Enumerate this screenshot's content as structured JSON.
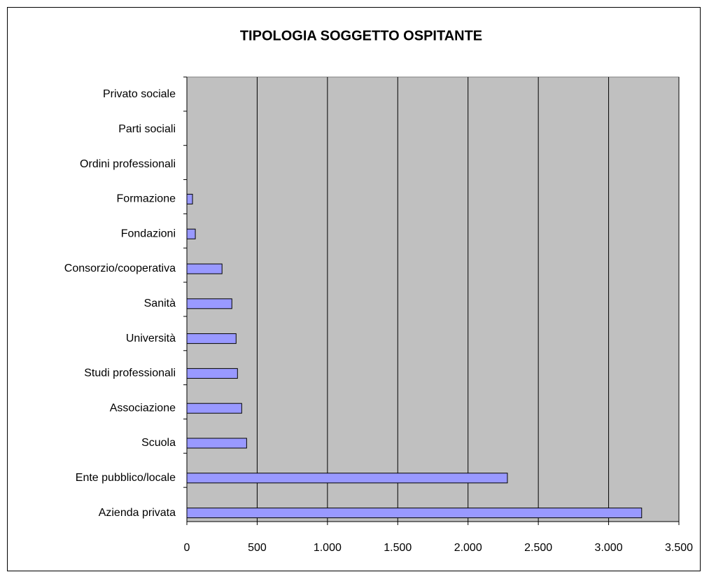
{
  "chart_data": {
    "type": "bar",
    "orientation": "horizontal",
    "title": "TIPOLOGIA SOGGETTO OSPITANTE",
    "categories": [
      "Azienda privata",
      "Ente pubblico/locale",
      "Scuola",
      "Associazione",
      "Studi professionali",
      "Università",
      "Sanità",
      "Consorzio/cooperativa",
      "Fondazioni",
      "Formazione",
      "Ordini professionali",
      "Parti sociali",
      "Privato sociale"
    ],
    "values": [
      3235,
      2280,
      425,
      390,
      360,
      350,
      320,
      250,
      60,
      40,
      0,
      0,
      0
    ],
    "color": "#9999ff",
    "xlim": [
      0,
      3500
    ],
    "xticks": [
      0,
      500,
      {
        "value": 1000,
        "label": "1.000"
      },
      {
        "value": 1500,
        "label": "1.500"
      },
      {
        "value": 2000,
        "label": "2.000"
      },
      {
        "value": 2500,
        "label": "2.500"
      },
      {
        "value": 3000,
        "label": "3.000"
      },
      {
        "value": 3500,
        "label": "3.500"
      }
    ],
    "grid": true
  }
}
